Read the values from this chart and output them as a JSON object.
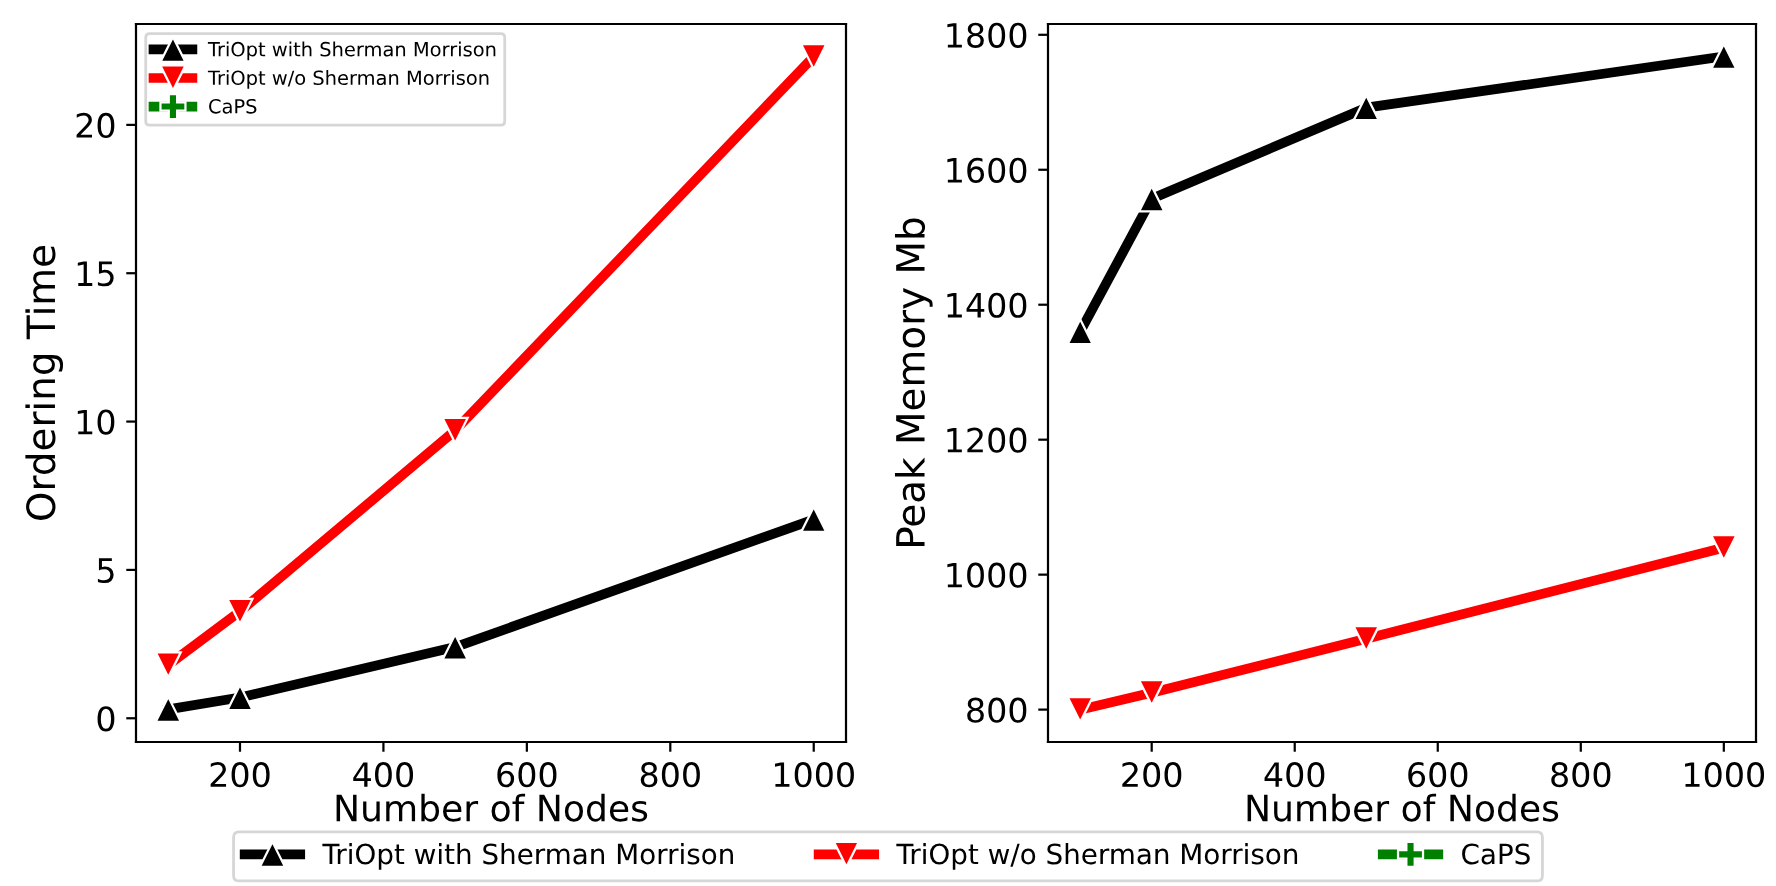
{
  "chart_data": [
    {
      "type": "line",
      "xlabel": "Number of Nodes",
      "ylabel": "Ordering Time",
      "x": [
        100,
        200,
        500,
        1000
      ],
      "xlim": [
        55,
        1045
      ],
      "xticks": [
        200,
        400,
        600,
        800,
        1000
      ],
      "ylim": [
        -0.8,
        23.4
      ],
      "yticks": [
        0,
        5,
        10,
        15,
        20
      ],
      "grid": false,
      "legend": "top left",
      "series": [
        {
          "name": "TriOpt with Sherman Morrison",
          "color": "#000000",
          "marker": "triangle",
          "values": [
            0.3,
            0.7,
            2.4,
            6.7
          ]
        },
        {
          "name": "TriOpt w/o Sherman Morrison",
          "color": "#ff0000",
          "marker": "triangle_down",
          "values": [
            1.8,
            3.6,
            9.7,
            22.3
          ]
        },
        {
          "name": "CaPS",
          "color": "#008000",
          "marker": "plus",
          "values": [
            null,
            null,
            null,
            null
          ]
        }
      ]
    },
    {
      "type": "line",
      "xlabel": "Number of Nodes",
      "ylabel": "Peak Memory Mb",
      "x": [
        100,
        200,
        500,
        1000
      ],
      "xlim": [
        55,
        1045
      ],
      "xticks": [
        200,
        400,
        600,
        800,
        1000
      ],
      "ylim": [
        752,
        1816
      ],
      "yticks": [
        800,
        1000,
        1200,
        1400,
        1600,
        1800
      ],
      "grid": false,
      "legend": "bottom",
      "series": [
        {
          "name": "TriOpt with Sherman Morrison",
          "color": "#000000",
          "marker": "triangle",
          "values": [
            1360,
            1557,
            1692,
            1768
          ]
        },
        {
          "name": "TriOpt w/o Sherman Morrison",
          "color": "#ff0000",
          "marker": "triangle_down",
          "values": [
            800,
            825,
            905,
            1040
          ]
        },
        {
          "name": "CaPS",
          "color": "#008000",
          "marker": "plus",
          "values": [
            null,
            null,
            null,
            null
          ]
        }
      ]
    }
  ]
}
